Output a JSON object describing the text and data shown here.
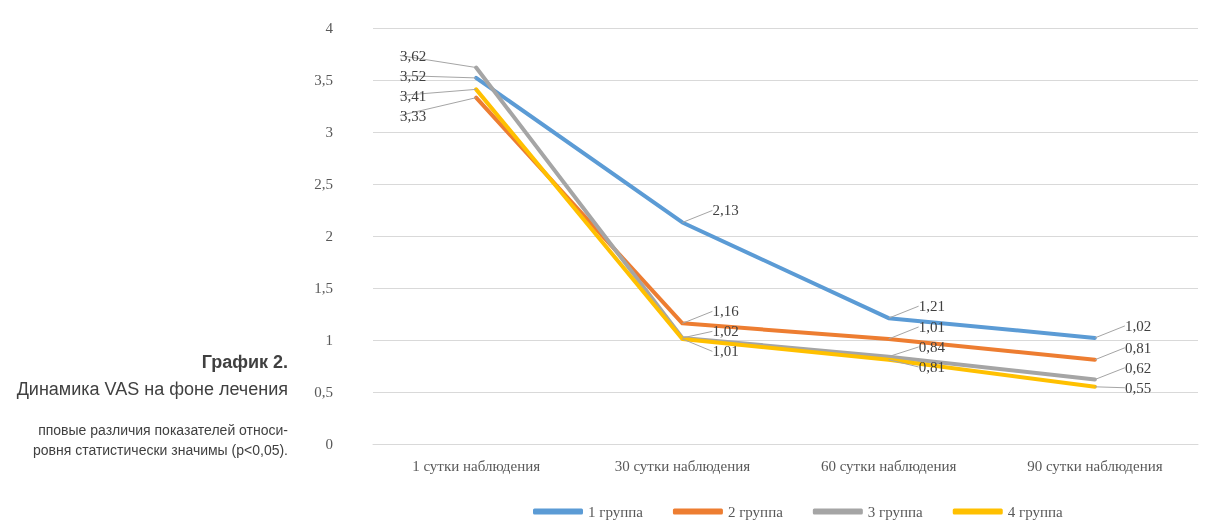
{
  "chart_data": {
    "type": "line",
    "title": "График 2.",
    "subtitle": "Динамика VAS на фоне лечения",
    "annotations": [
      "пповые различия показателей относи-",
      "ровня статистически значимы (p<0,05)."
    ],
    "categories": [
      "1 сутки наблюдения",
      "30 сутки наблюдения",
      "60 сутки наблюдения",
      "90 сутки наблюдения"
    ],
    "series": [
      {
        "name": "1 группа",
        "color": "#5b9bd5",
        "values": [
          3.52,
          2.13,
          1.21,
          1.02
        ],
        "value_labels": [
          "3,52",
          "2,13",
          "1,21",
          "1,02"
        ]
      },
      {
        "name": "2 группа",
        "color": "#ed7d31",
        "values": [
          3.33,
          1.16,
          1.01,
          0.81
        ],
        "value_labels": [
          "3,33",
          "1,16",
          "1,01",
          "0,81"
        ]
      },
      {
        "name": "3 группа",
        "color": "#a5a5a5",
        "values": [
          3.62,
          1.02,
          0.84,
          0.62
        ],
        "value_labels": [
          "3,62",
          "1,02",
          "0,84",
          "0,62"
        ]
      },
      {
        "name": "4 группа",
        "color": "#ffc000",
        "values": [
          3.41,
          1.01,
          0.81,
          0.55
        ],
        "value_labels": [
          "3,41",
          "1,01",
          "0,81",
          "0,55"
        ]
      }
    ],
    "ylim": [
      0,
      4
    ],
    "yticks": [
      0,
      {
        "value": 0.5,
        "label": "0,5"
      },
      1,
      {
        "value": 1.5,
        "label": "1,5"
      },
      2,
      {
        "value": 2.5,
        "label": "2,5"
      },
      3,
      {
        "value": 3.5,
        "label": "3,5"
      },
      4
    ],
    "grid": "y",
    "legend": "bottom",
    "marker": "none",
    "line_style": "solid"
  }
}
